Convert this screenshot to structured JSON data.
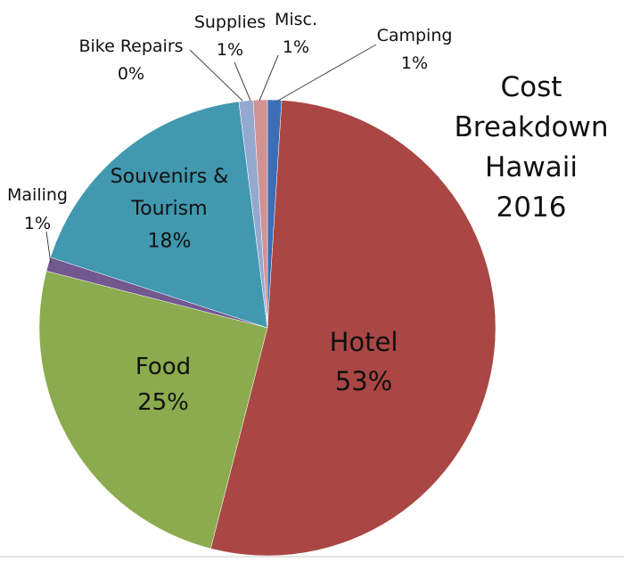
{
  "chart_data": {
    "type": "pie",
    "title": "Cost Breakdown Hawaii 2016",
    "categories": [
      "Camping",
      "Hotel",
      "Food",
      "Mailing",
      "Souvenirs & Tourism",
      "Bike Repairs",
      "Supplies",
      "Misc."
    ],
    "values": [
      1,
      53,
      25,
      1,
      18,
      0,
      1,
      1
    ],
    "value_labels": [
      "1%",
      "53%",
      "25%",
      "1%",
      "18%",
      "0%",
      "1%",
      "1%"
    ],
    "colors": [
      "#3d6db5",
      "#aa4643",
      "#8cab4f",
      "#71588f",
      "#4198af",
      "#db843d",
      "#93a9cf",
      "#d19392"
    ]
  }
}
